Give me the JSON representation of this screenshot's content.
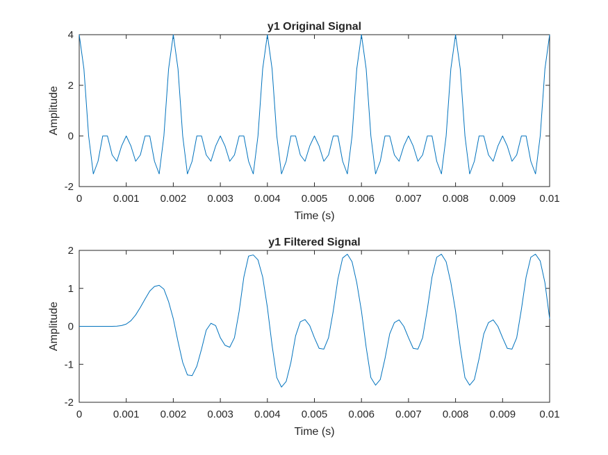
{
  "chart_data": [
    {
      "type": "line",
      "title": "y1 Original Signal",
      "xlabel": "Time (s)",
      "ylabel": "Amplitude",
      "xlim": [
        0,
        0.01
      ],
      "ylim": [
        -2,
        4
      ],
      "xticks": [
        "0",
        "0.001",
        "0.002",
        "0.003",
        "0.004",
        "0.005",
        "0.006",
        "0.007",
        "0.008",
        "0.009",
        "0.01"
      ],
      "yticks": [
        "-2",
        "0",
        "2",
        "4"
      ],
      "grid": false,
      "line_color": "#0072BD",
      "series": [
        {
          "x": [
            0,
            0.0001,
            0.0002,
            0.0003,
            0.0004,
            0.0005,
            0.0006,
            0.0007,
            0.0008,
            0.0009,
            0.001,
            0.0011,
            0.0012,
            0.0013,
            0.0014,
            0.0015,
            0.0016,
            0.0017,
            0.0018,
            0.0019,
            0.002
          ],
          "y": [
            4,
            2.65,
            0,
            -1.5,
            -1,
            0,
            0,
            -0.75,
            -1,
            -0.4,
            0,
            -0.4,
            -1,
            -0.75,
            0,
            0,
            -1,
            -1.5,
            0,
            2.65,
            4
          ]
        }
      ],
      "period": 0.002
    },
    {
      "type": "line",
      "title": "y1 Filtered Signal",
      "xlabel": "Time (s)",
      "ylabel": "Amplitude",
      "xlim": [
        0,
        0.01
      ],
      "ylim": [
        -2,
        2
      ],
      "xticks": [
        "0",
        "0.001",
        "0.002",
        "0.003",
        "0.004",
        "0.005",
        "0.006",
        "0.007",
        "0.008",
        "0.009",
        "0.01"
      ],
      "yticks": [
        "-2",
        "-1",
        "0",
        "1",
        "2"
      ],
      "grid": false,
      "line_color": "#0072BD",
      "series": [
        {
          "x": [
            0,
            0.0001,
            0.0002,
            0.0003,
            0.0004,
            0.0005,
            0.0006,
            0.0007,
            0.0008,
            0.0009,
            0.001,
            0.0011,
            0.0012,
            0.0013,
            0.0014,
            0.0015,
            0.0016,
            0.0017,
            0.0018,
            0.0019,
            0.002,
            0.0021,
            0.0022,
            0.0023,
            0.0024,
            0.0025,
            0.0026,
            0.0027,
            0.0028,
            0.0029,
            0.003,
            0.0031,
            0.0032,
            0.0033,
            0.0034,
            0.0035,
            0.0036,
            0.0037,
            0.0038,
            0.0039,
            0.004,
            0.0041,
            0.0042,
            0.0043,
            0.0044,
            0.0045,
            0.0046,
            0.0047,
            0.0048,
            0.0049,
            0.005,
            0.0051,
            0.0052,
            0.0053,
            0.0054,
            0.0055,
            0.0056,
            0.0057,
            0.0058,
            0.0059,
            0.006,
            0.0061,
            0.0062,
            0.0063,
            0.0064,
            0.0065,
            0.0066,
            0.0067,
            0.0068,
            0.0069,
            0.007,
            0.0071,
            0.0072,
            0.0073,
            0.0074,
            0.0075,
            0.0076,
            0.0077,
            0.0078,
            0.0079,
            0.008,
            0.0081,
            0.0082,
            0.0083,
            0.0084,
            0.0085,
            0.0086,
            0.0087,
            0.0088,
            0.0089,
            0.009,
            0.0091,
            0.0092,
            0.0093,
            0.0094,
            0.0095,
            0.0096,
            0.0097,
            0.0098,
            0.0099,
            0.01
          ],
          "y": [
            0,
            0,
            0,
            0,
            0,
            0,
            0,
            0,
            0.005,
            0.02,
            0.06,
            0.15,
            0.3,
            0.5,
            0.72,
            0.93,
            1.05,
            1.08,
            0.98,
            0.65,
            0.2,
            -0.4,
            -0.95,
            -1.28,
            -1.3,
            -1.05,
            -0.6,
            -0.1,
            0.08,
            0.02,
            -0.3,
            -0.5,
            -0.55,
            -0.3,
            0.4,
            1.3,
            1.85,
            1.88,
            1.75,
            1.3,
            0.5,
            -0.5,
            -1.35,
            -1.6,
            -1.45,
            -0.95,
            -0.25,
            0.12,
            0.18,
            0.02,
            -0.3,
            -0.58,
            -0.6,
            -0.3,
            0.4,
            1.25,
            1.8,
            1.9,
            1.7,
            1.15,
            0.4,
            -0.55,
            -1.35,
            -1.55,
            -1.4,
            -0.85,
            -0.2,
            0.1,
            0.17,
            0.0,
            -0.3,
            -0.58,
            -0.6,
            -0.3,
            0.45,
            1.3,
            1.82,
            1.9,
            1.7,
            1.15,
            0.4,
            -0.55,
            -1.35,
            -1.55,
            -1.4,
            -0.85,
            -0.2,
            0.1,
            0.17,
            0.0,
            -0.3,
            -0.58,
            -0.6,
            -0.3,
            0.45,
            1.3,
            1.82,
            1.9,
            1.72,
            1.15,
            0.2
          ]
        }
      ]
    }
  ]
}
